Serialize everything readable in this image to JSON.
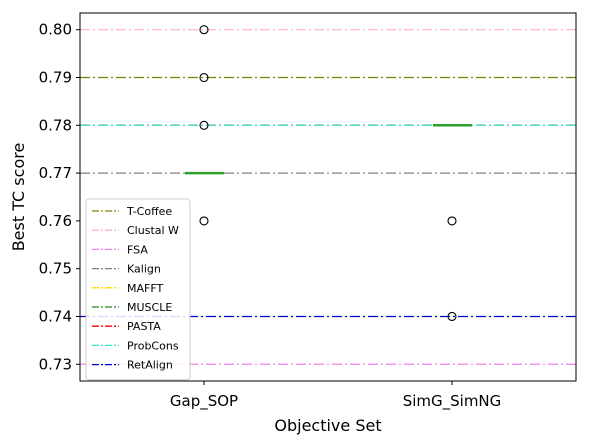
{
  "chart_data": {
    "type": "box",
    "title": "",
    "xlabel": "Objective Set",
    "ylabel": "Best TC score",
    "categories": [
      "Gap_SOP",
      "SimG_SimNG"
    ],
    "ylim": [
      0.7265,
      0.8035
    ],
    "yticks": [
      "0.73",
      "0.74",
      "0.75",
      "0.76",
      "0.77",
      "0.78",
      "0.79",
      "0.80"
    ],
    "ytick_values": [
      0.73,
      0.74,
      0.75,
      0.76,
      0.77,
      0.78,
      0.79,
      0.8
    ],
    "grid": false,
    "legend_position": "lower-left",
    "boxes": [
      {
        "category": "Gap_SOP",
        "median": 0.77,
        "outliers": [
          0.8,
          0.79,
          0.78,
          0.76
        ]
      },
      {
        "category": "SimG_SimNG",
        "median": 0.78,
        "outliers": [
          0.76,
          0.74
        ]
      }
    ],
    "reference_lines": [
      {
        "name": "T-Coffee",
        "value": 0.79,
        "color": "#808000"
      },
      {
        "name": "Clustal W",
        "value": 0.8,
        "color": "#ffb6c1"
      },
      {
        "name": "FSA",
        "value": 0.73,
        "color": "#ee82ee"
      },
      {
        "name": "Kalign",
        "value": 0.77,
        "color": "#808080"
      },
      {
        "name": "MAFFT",
        "value": 0.78,
        "color": "#ffd700"
      },
      {
        "name": "MUSCLE",
        "value": 0.78,
        "color": "#228b22"
      },
      {
        "name": "PASTA",
        "value": 0.78,
        "color": "#ff0000"
      },
      {
        "name": "ProbCons",
        "value": 0.78,
        "color": "#40e0d0"
      },
      {
        "name": "RetAlign",
        "value": 0.74,
        "color": "#0000cd"
      }
    ],
    "median_color": "#2ca02c"
  }
}
